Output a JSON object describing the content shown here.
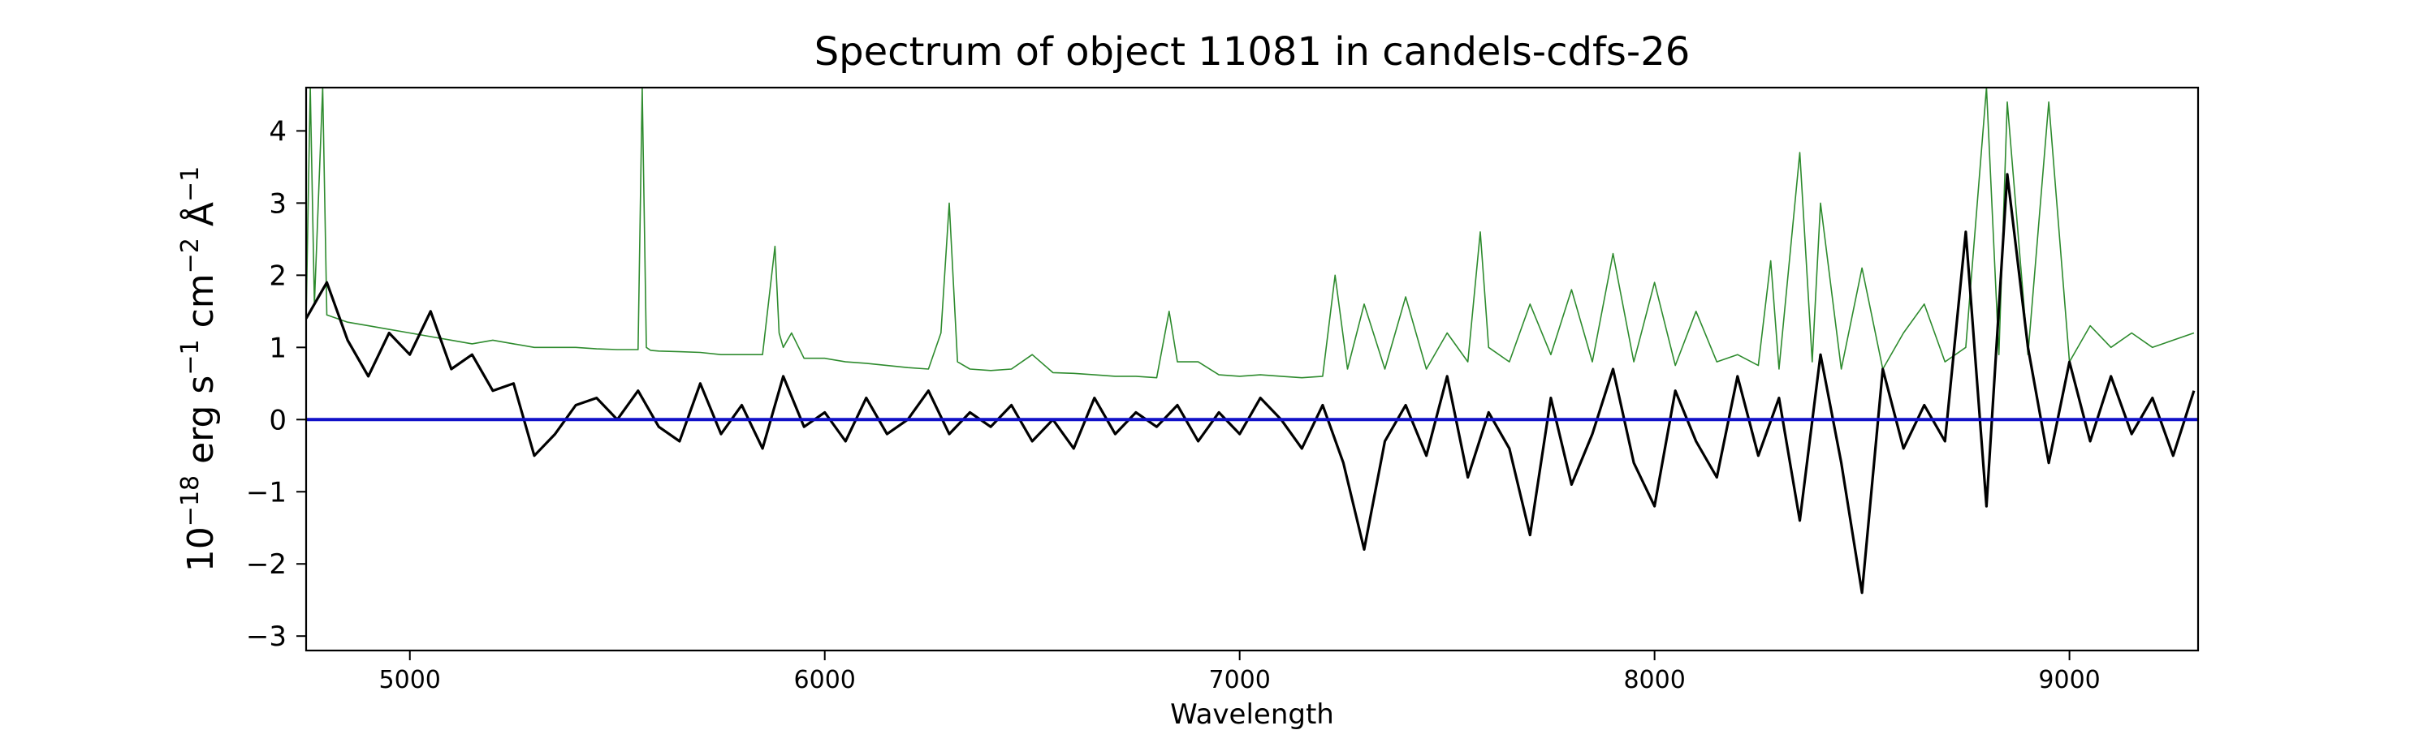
{
  "chart_data": {
    "type": "line",
    "title": "Spectrum of object 11081 in candels-cdfs-26",
    "xlabel": "Wavelength",
    "ylabel_prefix": "10",
    "ylabel_exp": "−18",
    "ylabel_unit_1": " erg s",
    "ylabel_exp_2": "−1",
    "ylabel_unit_2": " cm",
    "ylabel_exp_3": "−2",
    "ylabel_unit_3": " Å",
    "ylabel_exp_4": "−1",
    "xlim": [
      4750,
      9310
    ],
    "ylim": [
      -3.2,
      4.6
    ],
    "xticks": [
      5000,
      6000,
      7000,
      8000,
      9000
    ],
    "xtick_labels": [
      "5000",
      "6000",
      "7000",
      "8000",
      "9000"
    ],
    "yticks": [
      -3,
      -2,
      -1,
      0,
      1,
      2,
      3,
      4
    ],
    "ytick_labels": [
      "−3",
      "−2",
      "−1",
      "0",
      "1",
      "2",
      "3",
      "4"
    ],
    "grid": false,
    "colors": {
      "flux": "#000000",
      "error": "#2e8b2e",
      "zero": "#1010c8"
    },
    "series": [
      {
        "color": "#000000",
        "x": [
          4750,
          4800,
          4850,
          4900,
          4950,
          5000,
          5050,
          5100,
          5150,
          5200,
          5250,
          5300,
          5350,
          5400,
          5450,
          5500,
          5550,
          5600,
          5650,
          5700,
          5750,
          5800,
          5850,
          5900,
          5950,
          6000,
          6050,
          6100,
          6150,
          6200,
          6250,
          6300,
          6350,
          6400,
          6450,
          6500,
          6550,
          6600,
          6650,
          6700,
          6750,
          6800,
          6850,
          6900,
          6950,
          7000,
          7050,
          7100,
          7150,
          7200,
          7250,
          7300,
          7350,
          7400,
          7450,
          7500,
          7550,
          7600,
          7650,
          7700,
          7750,
          7800,
          7850,
          7900,
          7950,
          8000,
          8050,
          8100,
          8150,
          8200,
          8250,
          8300,
          8350,
          8400,
          8450,
          8500,
          8550,
          8600,
          8650,
          8700,
          8750,
          8800,
          8850,
          8900,
          8950,
          9000,
          9050,
          9100,
          9150,
          9200,
          9250,
          9300
        ],
        "y": [
          1.4,
          1.9,
          1.1,
          0.6,
          1.2,
          0.9,
          1.5,
          0.7,
          0.9,
          0.4,
          0.5,
          -0.5,
          -0.2,
          0.2,
          0.3,
          0.0,
          0.4,
          -0.1,
          -0.3,
          0.5,
          -0.2,
          0.2,
          -0.4,
          0.6,
          -0.1,
          0.1,
          -0.3,
          0.3,
          -0.2,
          0.0,
          0.4,
          -0.2,
          0.1,
          -0.1,
          0.2,
          -0.3,
          0.0,
          -0.4,
          0.3,
          -0.2,
          0.1,
          -0.1,
          0.2,
          -0.3,
          0.1,
          -0.2,
          0.3,
          0.0,
          -0.4,
          0.2,
          -0.6,
          -1.8,
          -0.3,
          0.2,
          -0.5,
          0.6,
          -0.8,
          0.1,
          -0.4,
          -1.6,
          0.3,
          -0.9,
          -0.2,
          0.7,
          -0.6,
          -1.2,
          0.4,
          -0.3,
          -0.8,
          0.6,
          -0.5,
          0.3,
          -1.4,
          0.9,
          -0.6,
          -2.4,
          0.7,
          -0.4,
          0.2,
          -0.3,
          2.6,
          -1.2,
          3.4,
          1.0,
          -0.6,
          0.8,
          -0.3,
          0.6,
          -0.2,
          0.3,
          -0.5,
          0.4
        ]
      },
      {
        "color": "#2e8b2e",
        "x": [
          4750,
          4760,
          4770,
          4790,
          4800,
          4850,
          4900,
          4950,
          5000,
          5050,
          5100,
          5150,
          5200,
          5250,
          5300,
          5350,
          5400,
          5450,
          5500,
          5550,
          5560,
          5570,
          5580,
          5600,
          5650,
          5700,
          5750,
          5800,
          5850,
          5880,
          5890,
          5900,
          5920,
          5950,
          6000,
          6050,
          6100,
          6150,
          6200,
          6250,
          6280,
          6300,
          6320,
          6350,
          6400,
          6450,
          6500,
          6550,
          6600,
          6650,
          6700,
          6750,
          6800,
          6830,
          6850,
          6900,
          6950,
          7000,
          7050,
          7100,
          7150,
          7200,
          7230,
          7260,
          7300,
          7350,
          7400,
          7450,
          7500,
          7550,
          7580,
          7600,
          7650,
          7700,
          7750,
          7800,
          7850,
          7900,
          7950,
          8000,
          8050,
          8100,
          8150,
          8200,
          8250,
          8280,
          8300,
          8350,
          8380,
          8400,
          8450,
          8500,
          8550,
          8600,
          8650,
          8700,
          8750,
          8800,
          8830,
          8850,
          8900,
          8950,
          9000,
          9050,
          9100,
          9150,
          9200,
          9250,
          9300
        ],
        "y": [
          1.4,
          4.6,
          1.6,
          4.6,
          1.45,
          1.35,
          1.3,
          1.25,
          1.2,
          1.15,
          1.1,
          1.05,
          1.1,
          1.05,
          1.0,
          1.0,
          1.0,
          0.98,
          0.97,
          0.97,
          4.6,
          1.0,
          0.96,
          0.95,
          0.94,
          0.93,
          0.9,
          0.9,
          0.9,
          2.4,
          1.2,
          1.0,
          1.2,
          0.85,
          0.85,
          0.8,
          0.78,
          0.75,
          0.72,
          0.7,
          1.2,
          3.0,
          0.8,
          0.7,
          0.68,
          0.7,
          0.9,
          0.65,
          0.64,
          0.62,
          0.6,
          0.6,
          0.58,
          1.5,
          0.8,
          0.8,
          0.62,
          0.6,
          0.62,
          0.6,
          0.58,
          0.6,
          2.0,
          0.7,
          1.6,
          0.7,
          1.7,
          0.7,
          1.2,
          0.8,
          2.6,
          1.0,
          0.8,
          1.6,
          0.9,
          1.8,
          0.8,
          2.3,
          0.8,
          1.9,
          0.75,
          1.5,
          0.8,
          0.9,
          0.75,
          2.2,
          0.7,
          3.7,
          0.8,
          3.0,
          0.7,
          2.1,
          0.7,
          1.2,
          1.6,
          0.8,
          1.0,
          4.6,
          0.9,
          4.4,
          0.9,
          4.4,
          0.8,
          1.3,
          1.0,
          1.2,
          1.0,
          1.1,
          1.2
        ]
      },
      {
        "color": "#1010c8",
        "x": [
          4750,
          9310
        ],
        "y": [
          0,
          0
        ]
      }
    ]
  }
}
